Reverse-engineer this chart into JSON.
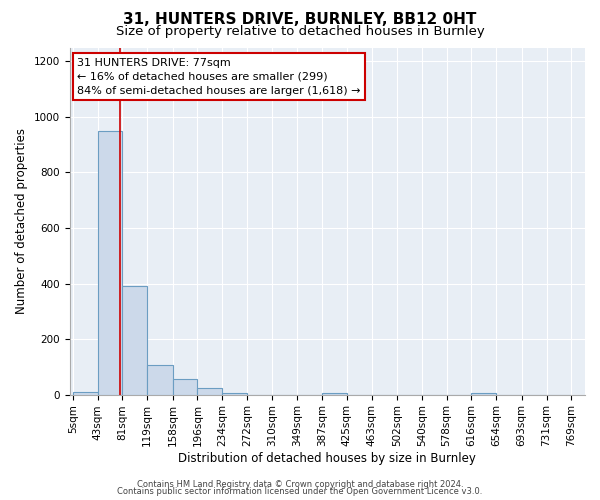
{
  "title": "31, HUNTERS DRIVE, BURNLEY, BB12 0HT",
  "subtitle": "Size of property relative to detached houses in Burnley",
  "xlabel": "Distribution of detached houses by size in Burnley",
  "ylabel": "Number of detached properties",
  "bar_left_edges": [
    5,
    43,
    81,
    119,
    158,
    196,
    234,
    272,
    310,
    349,
    387,
    425,
    463,
    502,
    540,
    578,
    616,
    654,
    693,
    731
  ],
  "bar_widths": [
    38,
    38,
    38,
    39,
    38,
    38,
    38,
    38,
    39,
    38,
    38,
    38,
    39,
    38,
    38,
    38,
    38,
    39,
    38,
    38
  ],
  "bar_heights": [
    10,
    950,
    390,
    105,
    55,
    22,
    5,
    0,
    0,
    0,
    5,
    0,
    0,
    0,
    0,
    0,
    5,
    0,
    0,
    0
  ],
  "bar_color": "#ccd9ea",
  "bar_edge_color": "#6b9dc2",
  "bar_edge_width": 0.8,
  "tick_labels": [
    "5sqm",
    "43sqm",
    "81sqm",
    "119sqm",
    "158sqm",
    "196sqm",
    "234sqm",
    "272sqm",
    "310sqm",
    "349sqm",
    "387sqm",
    "425sqm",
    "463sqm",
    "502sqm",
    "540sqm",
    "578sqm",
    "616sqm",
    "654sqm",
    "693sqm",
    "731sqm",
    "769sqm"
  ],
  "tick_positions": [
    5,
    43,
    81,
    119,
    158,
    196,
    234,
    272,
    310,
    349,
    387,
    425,
    463,
    502,
    540,
    578,
    616,
    654,
    693,
    731,
    769
  ],
  "ylim": [
    0,
    1250
  ],
  "xlim": [
    0,
    790
  ],
  "yticks": [
    0,
    200,
    400,
    600,
    800,
    1000,
    1200
  ],
  "vline_x": 77,
  "vline_color": "#cc0000",
  "annotation_line1": "31 HUNTERS DRIVE: 77sqm",
  "annotation_line2": "← 16% of detached houses are smaller (299)",
  "annotation_line3": "84% of semi-detached houses are larger (1,618) →",
  "footer_line1": "Contains HM Land Registry data © Crown copyright and database right 2024.",
  "footer_line2": "Contains public sector information licensed under the Open Government Licence v3.0.",
  "background_color": "#ffffff",
  "plot_bg_color": "#e8eef5",
  "title_fontsize": 11,
  "subtitle_fontsize": 9.5,
  "axis_label_fontsize": 8.5,
  "tick_fontsize": 7.5,
  "footer_fontsize": 6.0,
  "annotation_fontsize": 8.0
}
